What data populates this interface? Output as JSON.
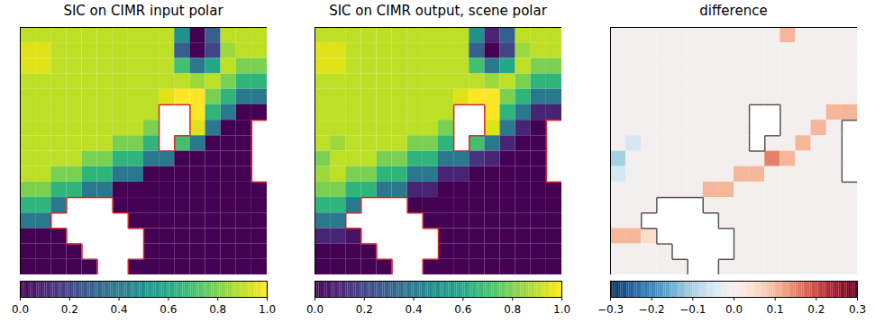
{
  "chart_data": [
    {
      "type": "heatmap",
      "title": "SIC on CIMR input polar",
      "color": "viridis",
      "tick_labels": false,
      "colorbar_lim": [
        0,
        1
      ],
      "colorbar_ticks": [
        {
          "value": 0,
          "label": "0.0"
        },
        {
          "value": 0.2,
          "label": "0.2"
        },
        {
          "value": 0.4,
          "label": "0.4"
        },
        {
          "value": 0.6,
          "label": "0.6"
        },
        {
          "value": 0.8,
          "label": "0.8"
        },
        {
          "value": 1,
          "label": "1.0"
        }
      ],
      "cells": [
        [
          0.9,
          0.9,
          0.9,
          0.9,
          0.9,
          0.9,
          0.9,
          0.9,
          0.9,
          0.9,
          0.5,
          0.0,
          0.3,
          0.9,
          0.9,
          0.9
        ],
        [
          0.95,
          0.95,
          0.9,
          0.9,
          0.9,
          0.9,
          0.9,
          0.9,
          0.9,
          0.9,
          0.3,
          0.0,
          0.2,
          0.85,
          0.9,
          0.9
        ],
        [
          0.95,
          0.95,
          0.9,
          0.9,
          0.9,
          0.9,
          0.9,
          0.9,
          0.9,
          0.9,
          0.7,
          0.4,
          0.6,
          0.9,
          0.8,
          0.8
        ],
        [
          0.9,
          0.9,
          0.9,
          0.9,
          0.9,
          0.9,
          0.9,
          0.9,
          0.9,
          0.9,
          0.9,
          0.85,
          0.9,
          0.8,
          0.65,
          0.65
        ],
        [
          0.9,
          0.9,
          0.9,
          0.9,
          0.9,
          0.9,
          0.9,
          0.9,
          0.9,
          0.95,
          1.0,
          1.0,
          0.8,
          0.65,
          0.4,
          0.4
        ],
        [
          0.9,
          0.9,
          0.9,
          0.9,
          0.9,
          0.9,
          0.9,
          0.9,
          0.9,
          null,
          null,
          1.0,
          0.65,
          0.4,
          0.0,
          0.0
        ],
        [
          0.9,
          0.9,
          0.9,
          0.9,
          0.9,
          0.9,
          0.9,
          0.9,
          0.8,
          null,
          null,
          0.95,
          0.4,
          0.0,
          0.0,
          null
        ],
        [
          0.9,
          0.9,
          0.9,
          0.9,
          0.9,
          0.9,
          0.8,
          0.8,
          0.65,
          null,
          0.7,
          0.4,
          0.0,
          0.0,
          0.0,
          null
        ],
        [
          0.9,
          0.9,
          0.9,
          0.9,
          0.8,
          0.8,
          0.65,
          0.65,
          0.4,
          0.4,
          0.0,
          0.0,
          0.0,
          0.0,
          0.0,
          null
        ],
        [
          0.9,
          0.9,
          0.8,
          0.8,
          0.65,
          0.65,
          0.4,
          0.4,
          0.0,
          0.0,
          0.0,
          0.0,
          0.0,
          0.0,
          0.0,
          null
        ],
        [
          0.8,
          0.8,
          0.65,
          0.65,
          0.4,
          0.4,
          0.0,
          0.0,
          0.0,
          0.0,
          0.0,
          0.0,
          0.0,
          0.0,
          0.0,
          0.0
        ],
        [
          0.65,
          0.65,
          0.4,
          null,
          null,
          null,
          0.0,
          0.0,
          0.0,
          0.0,
          0.0,
          0.0,
          0.0,
          0.0,
          0.0,
          0.0
        ],
        [
          0.4,
          0.4,
          null,
          null,
          null,
          null,
          null,
          0.0,
          0.0,
          0.0,
          0.0,
          0.0,
          0.0,
          0.0,
          0.0,
          0.0
        ],
        [
          0.0,
          0.0,
          0.0,
          null,
          null,
          null,
          null,
          null,
          0.0,
          0.0,
          0.0,
          0.0,
          0.0,
          0.0,
          0.0,
          0.0
        ],
        [
          0.0,
          0.0,
          0.0,
          0.0,
          null,
          null,
          null,
          null,
          0.0,
          0.0,
          0.0,
          0.0,
          0.0,
          0.0,
          0.0,
          0.0
        ],
        [
          0.0,
          0.0,
          0.0,
          0.0,
          0.0,
          null,
          null,
          0.0,
          0.0,
          0.0,
          0.0,
          0.0,
          0.0,
          0.0,
          0.0,
          0.0
        ]
      ]
    },
    {
      "type": "heatmap",
      "title": "SIC on CIMR output, scene polar",
      "color": "viridis",
      "tick_labels": false,
      "colorbar_lim": [
        0,
        1
      ],
      "colorbar_ticks": [
        {
          "value": 0,
          "label": "0.0"
        },
        {
          "value": 0.2,
          "label": "0.2"
        },
        {
          "value": 0.4,
          "label": "0.4"
        },
        {
          "value": 0.6,
          "label": "0.6"
        },
        {
          "value": 0.8,
          "label": "0.8"
        },
        {
          "value": 1,
          "label": "1.0"
        }
      ],
      "cells": [
        [
          0.9,
          0.9,
          0.9,
          0.9,
          0.9,
          0.9,
          0.9,
          0.9,
          0.9,
          0.9,
          0.5,
          0.1,
          0.3,
          0.9,
          0.9,
          0.9
        ],
        [
          0.95,
          0.95,
          0.9,
          0.9,
          0.9,
          0.9,
          0.9,
          0.9,
          0.9,
          0.9,
          0.3,
          0.0,
          0.2,
          0.85,
          0.9,
          0.9
        ],
        [
          0.95,
          0.95,
          0.9,
          0.9,
          0.9,
          0.9,
          0.9,
          0.9,
          0.9,
          0.9,
          0.7,
          0.4,
          0.6,
          0.9,
          0.8,
          0.8
        ],
        [
          0.9,
          0.9,
          0.9,
          0.9,
          0.9,
          0.9,
          0.9,
          0.9,
          0.9,
          0.9,
          0.9,
          0.85,
          0.9,
          0.8,
          0.65,
          0.65
        ],
        [
          0.9,
          0.9,
          0.9,
          0.9,
          0.9,
          0.9,
          0.9,
          0.9,
          0.9,
          0.95,
          1.0,
          1.0,
          0.8,
          0.65,
          0.4,
          0.4
        ],
        [
          0.9,
          0.9,
          0.9,
          0.9,
          0.9,
          0.9,
          0.9,
          0.9,
          0.9,
          null,
          null,
          1.0,
          0.65,
          0.4,
          0.1,
          0.1
        ],
        [
          0.9,
          0.9,
          0.9,
          0.9,
          0.9,
          0.9,
          0.9,
          0.9,
          0.8,
          null,
          null,
          0.95,
          0.4,
          0.1,
          0.0,
          null
        ],
        [
          0.9,
          0.85,
          0.9,
          0.9,
          0.9,
          0.9,
          0.8,
          0.8,
          0.65,
          null,
          0.7,
          0.4,
          0.1,
          0.0,
          0.0,
          null
        ],
        [
          0.8,
          0.9,
          0.9,
          0.9,
          0.8,
          0.8,
          0.65,
          0.65,
          0.4,
          0.4,
          0.15,
          0.1,
          0.0,
          0.0,
          0.0,
          null
        ],
        [
          0.85,
          0.9,
          0.8,
          0.8,
          0.65,
          0.65,
          0.4,
          0.4,
          0.1,
          0.1,
          0.0,
          0.0,
          0.0,
          0.0,
          0.0,
          null
        ],
        [
          0.8,
          0.8,
          0.65,
          0.65,
          0.4,
          0.4,
          0.1,
          0.1,
          0.0,
          0.0,
          0.0,
          0.0,
          0.0,
          0.0,
          0.0,
          0.0
        ],
        [
          0.65,
          0.65,
          0.4,
          null,
          null,
          null,
          0.0,
          0.0,
          0.0,
          0.0,
          0.0,
          0.0,
          0.0,
          0.0,
          0.0,
          0.0
        ],
        [
          0.4,
          0.4,
          null,
          null,
          null,
          null,
          null,
          0.0,
          0.0,
          0.0,
          0.0,
          0.0,
          0.0,
          0.0,
          0.0,
          0.0
        ],
        [
          0.1,
          0.1,
          0.05,
          null,
          null,
          null,
          null,
          null,
          0.0,
          0.0,
          0.0,
          0.0,
          0.0,
          0.0,
          0.0,
          0.0
        ],
        [
          0.0,
          0.0,
          0.0,
          0.0,
          null,
          null,
          null,
          null,
          0.0,
          0.0,
          0.0,
          0.0,
          0.0,
          0.0,
          0.0,
          0.0
        ],
        [
          0.0,
          0.0,
          0.0,
          0.0,
          0.0,
          null,
          null,
          0.0,
          0.0,
          0.0,
          0.0,
          0.0,
          0.0,
          0.0,
          0.0,
          0.0
        ]
      ]
    },
    {
      "type": "heatmap",
      "title": "difference",
      "color": "RdBu_r",
      "tick_labels": false,
      "colorbar_lim": [
        -0.3,
        0.3
      ],
      "colorbar_ticks": [
        {
          "value": -0.3,
          "label": "−0.3"
        },
        {
          "value": -0.2,
          "label": "−0.2"
        },
        {
          "value": -0.1,
          "label": "−0.1"
        },
        {
          "value": 0,
          "label": "0.0"
        },
        {
          "value": 0.1,
          "label": "0.1"
        },
        {
          "value": 0.2,
          "label": "0.2"
        },
        {
          "value": 0.3,
          "label": "0.3"
        }
      ],
      "cells": [
        [
          0,
          0,
          0,
          0,
          0,
          0,
          0,
          0,
          0,
          0,
          0,
          0.1,
          0,
          0,
          0,
          0
        ],
        [
          0,
          0,
          0,
          0,
          0,
          0,
          0,
          0,
          0,
          0,
          0,
          0,
          0,
          0,
          0,
          0
        ],
        [
          0,
          0,
          0,
          0,
          0,
          0,
          0,
          0,
          0,
          0,
          0,
          0,
          0,
          0,
          0,
          0
        ],
        [
          0,
          0,
          0,
          0,
          0,
          0,
          0,
          0,
          0,
          0,
          0,
          0,
          0,
          0,
          0,
          0
        ],
        [
          0,
          0,
          0,
          0,
          0,
          0,
          0,
          0,
          0,
          0,
          0,
          0,
          0,
          0,
          0,
          0
        ],
        [
          0,
          0,
          0,
          0,
          0,
          0,
          0,
          0,
          0,
          null,
          null,
          0,
          0,
          0,
          0.1,
          0.1
        ],
        [
          0,
          0,
          0,
          0,
          0,
          0,
          0,
          0,
          0,
          null,
          null,
          0,
          0,
          0.1,
          0,
          null
        ],
        [
          0,
          -0.05,
          0,
          0,
          0,
          0,
          0,
          0,
          0,
          null,
          0,
          0,
          0.1,
          0,
          0,
          null
        ],
        [
          -0.1,
          0,
          0,
          0,
          0,
          0,
          0,
          0,
          0,
          0,
          0.15,
          0.1,
          0,
          0,
          0,
          null
        ],
        [
          -0.05,
          0,
          0,
          0,
          0,
          0,
          0,
          0,
          0.1,
          0.1,
          0,
          0,
          0,
          0,
          0,
          null
        ],
        [
          0,
          0,
          0,
          0,
          0,
          0,
          0.1,
          0.1,
          0,
          0,
          0,
          0,
          0,
          0,
          0,
          0
        ],
        [
          0,
          0,
          0,
          null,
          null,
          null,
          0,
          0,
          0,
          0,
          0,
          0,
          0,
          0,
          0,
          0
        ],
        [
          0,
          0,
          null,
          null,
          null,
          null,
          null,
          0,
          0,
          0,
          0,
          0,
          0,
          0,
          0,
          0
        ],
        [
          0.1,
          0.1,
          0.05,
          null,
          null,
          null,
          null,
          null,
          0,
          0,
          0,
          0,
          0,
          0,
          0,
          0
        ],
        [
          0,
          0,
          0,
          0,
          null,
          null,
          null,
          null,
          0,
          0,
          0,
          0,
          0,
          0,
          0,
          0
        ],
        [
          0,
          0,
          0,
          0,
          0,
          null,
          null,
          0,
          0,
          0,
          0,
          0,
          0,
          0,
          0,
          0
        ]
      ]
    }
  ]
}
